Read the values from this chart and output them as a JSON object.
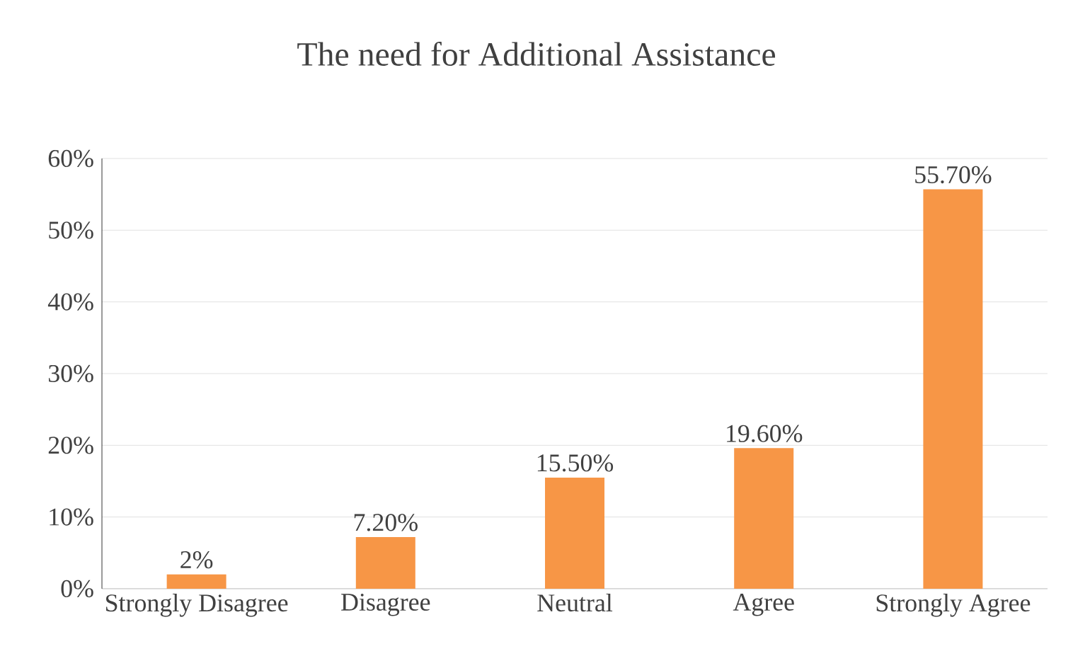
{
  "chart_data": {
    "type": "bar",
    "title": "The need for Additional Assistance",
    "categories": [
      "Strongly Disagree",
      "Disagree",
      "Neutral",
      "Agree",
      "Strongly Agree"
    ],
    "values": [
      2,
      7.2,
      15.5,
      19.6,
      55.7
    ],
    "value_labels": [
      "2%",
      "7.20%",
      "15.50%",
      "19.60%",
      "55.70%"
    ],
    "color": "#f79646",
    "ylim": [
      0,
      60
    ],
    "yticks": [
      {
        "value": 0,
        "label": "0%"
      },
      {
        "value": 10,
        "label": "10%"
      },
      {
        "value": 20,
        "label": "20%"
      },
      {
        "value": 30,
        "label": "30%"
      },
      {
        "value": 40,
        "label": "40%"
      },
      {
        "value": 50,
        "label": "50%"
      },
      {
        "value": 60,
        "label": "60%"
      }
    ],
    "grid": "y"
  }
}
